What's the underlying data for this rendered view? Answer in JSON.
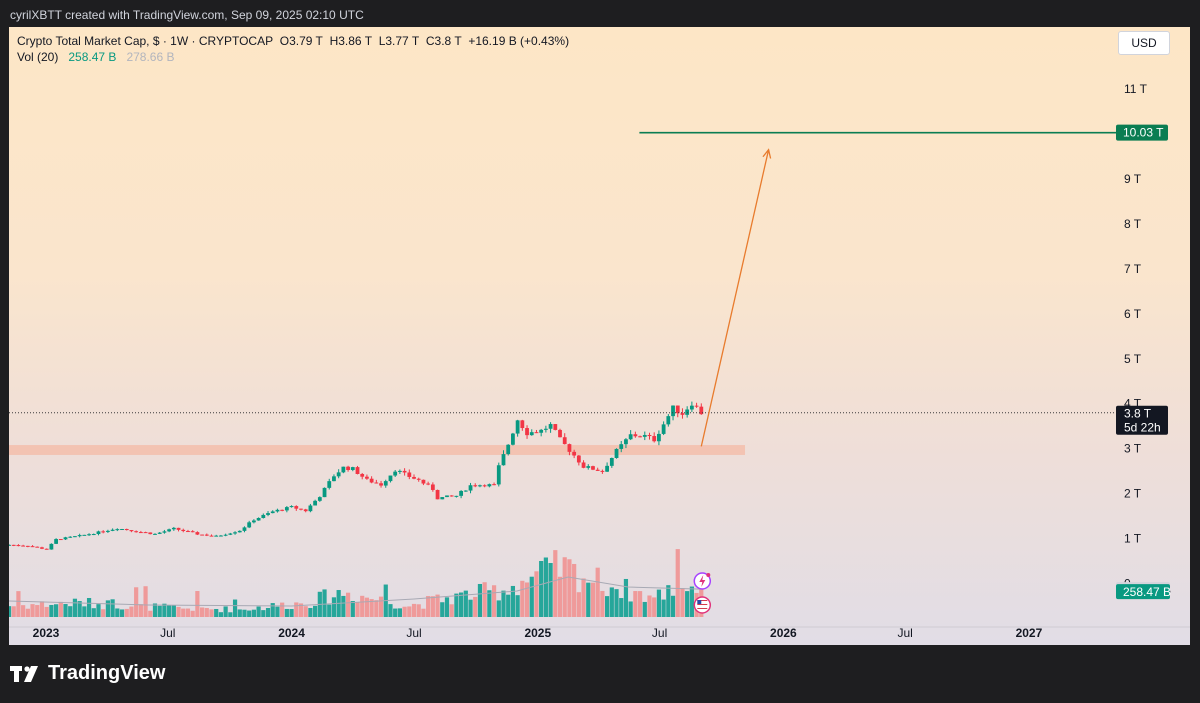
{
  "header": {
    "attribution": "cyrilXBTT created with TradingView.com, Sep 09, 2025 02:10 UTC"
  },
  "legend": {
    "symbol_line": "Crypto Total Market Cap, $ · 1W · CRYPTOCAP",
    "open": "O3.79 T",
    "high": "H3.86 T",
    "low": "L3.77 T",
    "close": "C3.8 T",
    "change": "+16.19 B (+0.43%)",
    "vol_label": "Vol (20)",
    "vol_value": "258.47 B",
    "vol_ma_value": "278.66 B"
  },
  "currency_button": "USD",
  "branding": {
    "name": "TradingView"
  },
  "colors": {
    "up": "#089981",
    "down": "#f23645",
    "vol_up": "#26a69a",
    "vol_down": "#ef9a9a",
    "target": "#0a7d52",
    "arrow": "#e87b2d",
    "zone": "#f4b9a6"
  },
  "icons": [
    "flash-event-icon",
    "us-flag-event-icon"
  ],
  "chart_data": {
    "type": "candlestick",
    "timeframe": "1W",
    "x_range": [
      "2022-11-07",
      "2027-04-30"
    ],
    "y_range_T": [
      0,
      12
    ],
    "x_tick_labels": [
      {
        "label": "2023",
        "date": "2023-01-01",
        "bold": true
      },
      {
        "label": "Jul",
        "date": "2023-07-01",
        "bold": false
      },
      {
        "label": "2024",
        "date": "2024-01-01",
        "bold": true
      },
      {
        "label": "Jul",
        "date": "2024-07-01",
        "bold": false
      },
      {
        "label": "2025",
        "date": "2025-01-01",
        "bold": true
      },
      {
        "label": "Jul",
        "date": "2025-07-01",
        "bold": false
      },
      {
        "label": "2026",
        "date": "2026-01-01",
        "bold": true
      },
      {
        "label": "Jul",
        "date": "2026-07-01",
        "bold": false
      },
      {
        "label": "2027",
        "date": "2027-01-01",
        "bold": true
      }
    ],
    "y_tick_labels": [
      {
        "label": "11 T",
        "value": 11
      },
      {
        "label": "9 T",
        "value": 9
      },
      {
        "label": "8 T",
        "value": 8
      },
      {
        "label": "7 T",
        "value": 7
      },
      {
        "label": "6 T",
        "value": 6
      },
      {
        "label": "5 T",
        "value": 5
      },
      {
        "label": "4 T",
        "value": 4
      },
      {
        "label": "3 T",
        "value": 3
      },
      {
        "label": "2 T",
        "value": 2
      },
      {
        "label": "1 T",
        "value": 1
      },
      {
        "label": "0",
        "value": 0
      }
    ],
    "price_close_points_T": [
      [
        "2022-11-07",
        0.86
      ],
      [
        "2022-12-05",
        0.84
      ],
      [
        "2023-01-02",
        0.76
      ],
      [
        "2023-01-16",
        0.98
      ],
      [
        "2023-02-20",
        1.06
      ],
      [
        "2023-03-20",
        1.14
      ],
      [
        "2023-04-17",
        1.23
      ],
      [
        "2023-05-15",
        1.16
      ],
      [
        "2023-06-12",
        1.1
      ],
      [
        "2023-07-10",
        1.22
      ],
      [
        "2023-08-14",
        1.1
      ],
      [
        "2023-09-11",
        1.05
      ],
      [
        "2023-10-16",
        1.18
      ],
      [
        "2023-11-06",
        1.42
      ],
      [
        "2023-12-04",
        1.6
      ],
      [
        "2024-01-01",
        1.7
      ],
      [
        "2024-01-22",
        1.62
      ],
      [
        "2024-02-12",
        1.95
      ],
      [
        "2024-03-04",
        2.4
      ],
      [
        "2024-03-18",
        2.58
      ],
      [
        "2024-04-01",
        2.55
      ],
      [
        "2024-04-22",
        2.3
      ],
      [
        "2024-05-13",
        2.2
      ],
      [
        "2024-06-03",
        2.53
      ],
      [
        "2024-06-24",
        2.38
      ],
      [
        "2024-07-08",
        2.3
      ],
      [
        "2024-07-29",
        2.1
      ],
      [
        "2024-08-05",
        1.9
      ],
      [
        "2024-09-02",
        1.95
      ],
      [
        "2024-09-23",
        2.18
      ],
      [
        "2024-10-14",
        2.2
      ],
      [
        "2024-10-28",
        2.18
      ],
      [
        "2024-11-04",
        2.6
      ],
      [
        "2024-11-18",
        3.1
      ],
      [
        "2024-12-02",
        3.65
      ],
      [
        "2024-12-16",
        3.35
      ],
      [
        "2025-01-06",
        3.4
      ],
      [
        "2025-01-20",
        3.52
      ],
      [
        "2025-02-03",
        3.2
      ],
      [
        "2025-02-24",
        2.85
      ],
      [
        "2025-03-10",
        2.6
      ],
      [
        "2025-04-07",
        2.5
      ],
      [
        "2025-04-28",
        2.95
      ],
      [
        "2025-05-19",
        3.3
      ],
      [
        "2025-06-09",
        3.28
      ],
      [
        "2025-06-23",
        3.2
      ],
      [
        "2025-07-07",
        3.55
      ],
      [
        "2025-07-21",
        3.9
      ],
      [
        "2025-08-04",
        3.78
      ],
      [
        "2025-08-18",
        4.02
      ],
      [
        "2025-09-01",
        3.8
      ]
    ],
    "volume_close_points_B": [
      [
        "2022-11-07",
        120
      ],
      [
        "2023-02-20",
        150
      ],
      [
        "2023-07-10",
        95
      ],
      [
        "2023-10-16",
        80
      ],
      [
        "2024-01-22",
        150
      ],
      [
        "2024-03-18",
        260
      ],
      [
        "2024-06-24",
        120
      ],
      [
        "2024-08-05",
        180
      ],
      [
        "2024-11-18",
        300
      ],
      [
        "2024-12-02",
        360
      ],
      [
        "2025-02-03",
        520
      ],
      [
        "2025-04-07",
        360
      ],
      [
        "2025-06-23",
        200
      ],
      [
        "2025-08-04",
        360
      ],
      [
        "2025-09-01",
        258.47
      ]
    ],
    "volume_ma": {
      "label": "Vol (20)",
      "points_B": [
        [
          "2022-11-07",
          160
        ],
        [
          "2023-06-01",
          120
        ],
        [
          "2024-01-01",
          110
        ],
        [
          "2024-07-01",
          180
        ],
        [
          "2024-12-01",
          260
        ],
        [
          "2025-02-15",
          400
        ],
        [
          "2025-05-15",
          300
        ],
        [
          "2025-09-01",
          278.66
        ]
      ]
    },
    "support_zone_T": {
      "from": 2.86,
      "to": 3.08,
      "start": "2022-11-07",
      "end": "2025-11-05"
    },
    "target_line": {
      "value": 10.03,
      "label": "10.03 T",
      "start": "2025-06-01"
    },
    "projection_arrow": {
      "from": [
        "2025-09-01",
        3.05
      ],
      "to": [
        "2025-12-10",
        9.65
      ]
    },
    "last_price": {
      "value": 3.8,
      "label": "3.8 T",
      "countdown": "5d 22h"
    },
    "volume_tags": [
      {
        "label": "278.66 B",
        "value_B": 278.66,
        "kind": "ma"
      },
      {
        "label": "258.47 B",
        "value_B": 258.47,
        "kind": "current"
      }
    ]
  }
}
